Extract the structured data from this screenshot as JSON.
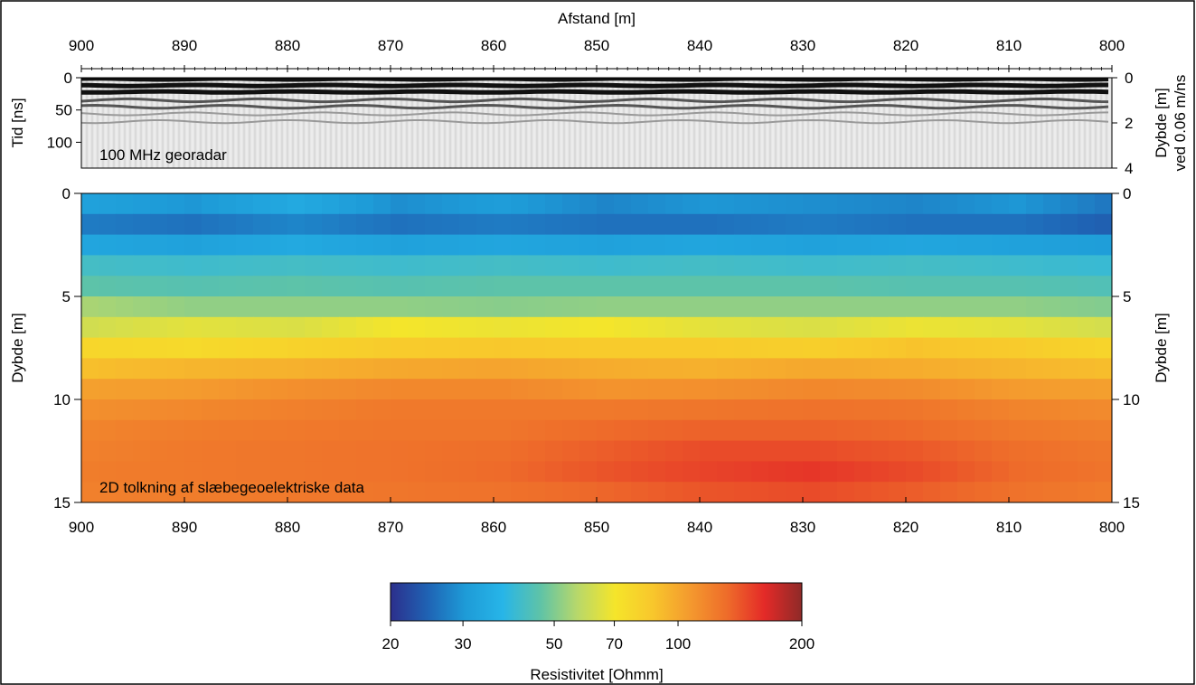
{
  "chart_data": [
    {
      "type": "heatmap",
      "panel": "georadar",
      "annotation": "100 MHz georadar",
      "xlabel": "Afstand [m]",
      "ylabel": "Tid [ns]",
      "ylabel_right": [
        "Dybde [m]",
        "ved 0.06 m/ns"
      ],
      "xlim": [
        900,
        800
      ],
      "ylim": [
        0,
        140
      ],
      "ylim_right": [
        0,
        4
      ],
      "x_ticks": [
        900,
        890,
        880,
        870,
        860,
        850,
        840,
        830,
        820,
        810,
        800
      ],
      "y_ticks": [
        0,
        50,
        100
      ],
      "y_ticks_right": [
        0,
        2,
        4
      ],
      "colormap": "grayscale",
      "reflectors_ns": [
        {
          "time": 2,
          "strength": "strong"
        },
        {
          "time": 12,
          "strength": "strong"
        },
        {
          "time": 22,
          "strength": "strong"
        },
        {
          "time": 35,
          "strength": "medium"
        },
        {
          "time": 45,
          "strength": "medium"
        },
        {
          "time": 56,
          "strength": "weak"
        },
        {
          "time": 68,
          "strength": "weak"
        }
      ]
    },
    {
      "type": "heatmap",
      "panel": "resistivity",
      "annotation": "2D tolkning af slæbegeoelektriske data",
      "ylabel": "Dybde [m]",
      "ylabel_right": "Dybde [m]",
      "xlim": [
        900,
        800
      ],
      "ylim": [
        0,
        15
      ],
      "x_ticks": [
        900,
        890,
        880,
        870,
        860,
        850,
        840,
        830,
        820,
        810,
        800
      ],
      "y_ticks": [
        0,
        5,
        10,
        15
      ],
      "layer_depths_m": [
        0,
        1,
        2,
        3,
        4,
        5,
        6,
        7,
        8,
        9,
        10,
        11,
        12,
        13,
        14,
        15
      ],
      "sample_x_m": [
        900,
        890,
        880,
        870,
        860,
        850,
        840,
        830,
        820,
        810,
        800
      ],
      "resistivity_ohmm": [
        [
          32,
          30,
          34,
          29,
          31,
          28,
          30,
          29,
          28,
          30,
          26
        ],
        [
          27,
          26,
          28,
          26,
          27,
          26,
          26,
          27,
          26,
          26,
          24
        ],
        [
          33,
          32,
          34,
          32,
          33,
          32,
          33,
          32,
          33,
          32,
          31
        ],
        [
          42,
          41,
          42,
          41,
          42,
          41,
          42,
          41,
          42,
          41,
          40
        ],
        [
          46,
          45,
          46,
          45,
          46,
          46,
          46,
          46,
          45,
          45,
          44
        ],
        [
          55,
          52,
          52,
          52,
          51,
          52,
          52,
          52,
          52,
          52,
          50
        ],
        [
          62,
          66,
          64,
          70,
          68,
          70,
          66,
          64,
          68,
          66,
          62
        ],
        [
          78,
          76,
          80,
          84,
          86,
          84,
          84,
          82,
          88,
          84,
          78
        ],
        [
          90,
          94,
          96,
          100,
          102,
          98,
          96,
          100,
          98,
          94,
          90
        ],
        [
          104,
          106,
          112,
          116,
          116,
          110,
          112,
          116,
          114,
          106,
          104
        ],
        [
          112,
          116,
          120,
          124,
          124,
          124,
          126,
          128,
          126,
          118,
          114
        ],
        [
          118,
          122,
          124,
          126,
          126,
          132,
          136,
          136,
          132,
          124,
          120
        ],
        [
          120,
          124,
          126,
          128,
          130,
          138,
          146,
          146,
          140,
          130,
          124
        ],
        [
          122,
          124,
          126,
          128,
          132,
          142,
          150,
          156,
          146,
          132,
          126
        ],
        [
          120,
          122,
          124,
          126,
          128,
          134,
          142,
          146,
          138,
          128,
          122
        ]
      ]
    }
  ],
  "colorbar": {
    "label": "Resistivitet [Ohmm]",
    "ticks": [
      20,
      30,
      50,
      70,
      100,
      200
    ],
    "range": [
      20,
      200
    ],
    "scale": "log",
    "colors": [
      "#2c2f8c",
      "#1f63b4",
      "#1e9bd7",
      "#27b5e8",
      "#5ec3a8",
      "#b8d86a",
      "#f5e52a",
      "#f8c72c",
      "#f49a2e",
      "#ee6c2a",
      "#e42a28",
      "#8e2a28"
    ]
  }
}
